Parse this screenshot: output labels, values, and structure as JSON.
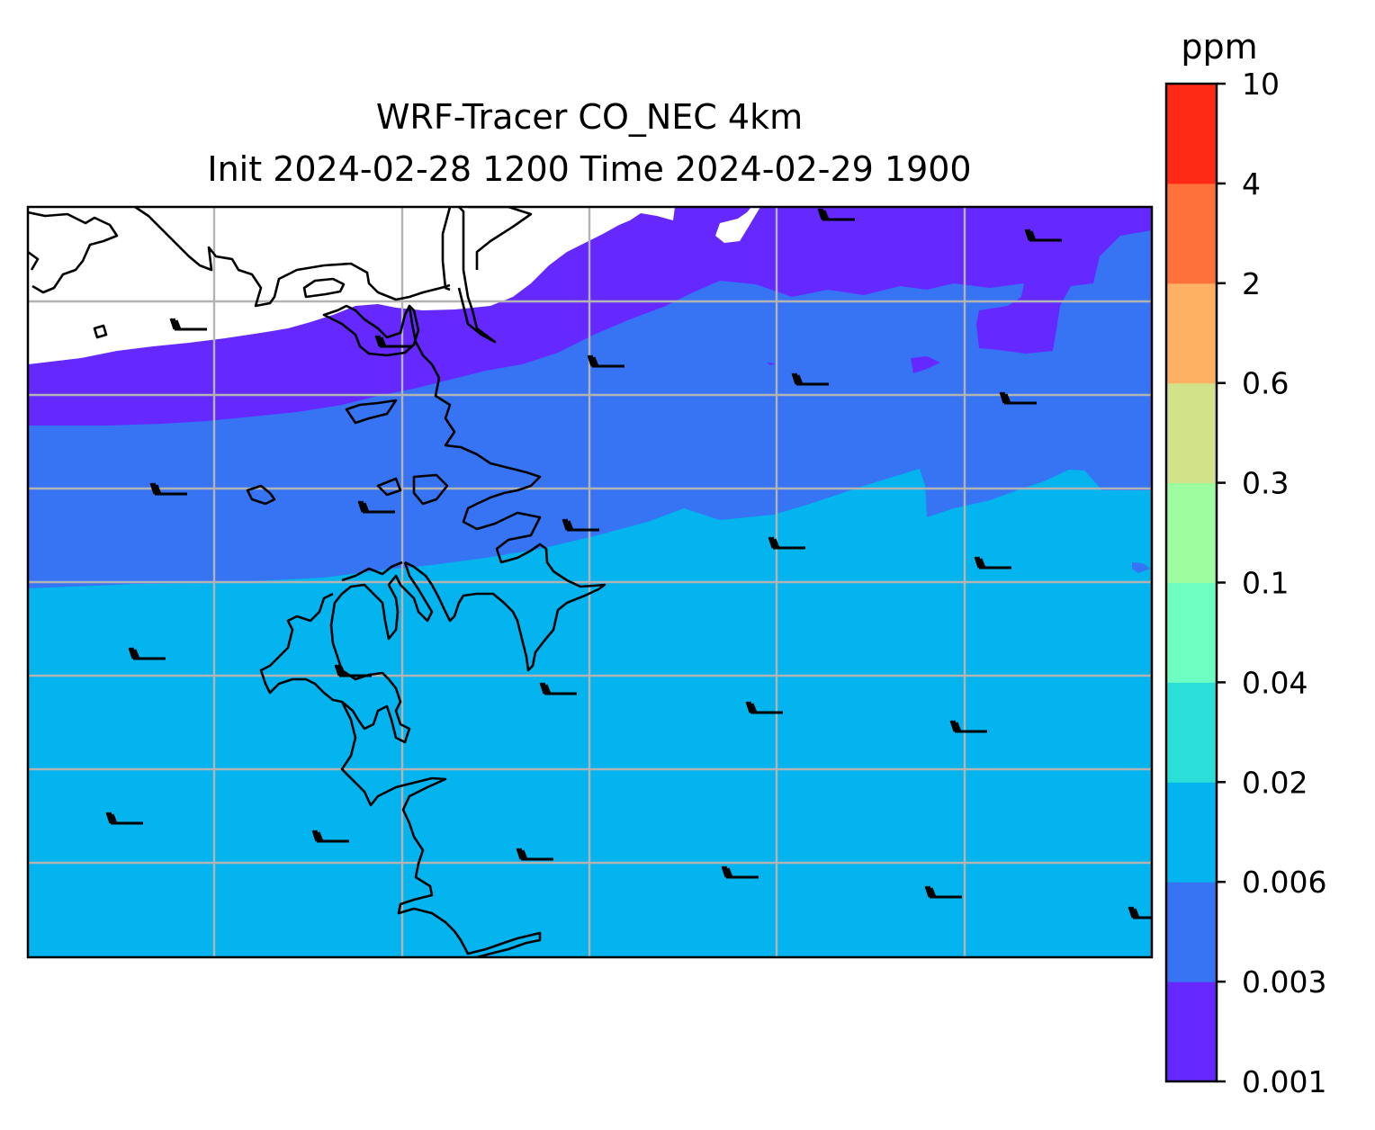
{
  "title": {
    "line1": "WRF-Tracer CO_NEC 4km",
    "line2": "Init 2024-02-28 1200 Time 2024-02-29 1900"
  },
  "colorbar": {
    "unit": "ppm",
    "levels": [
      "0.001",
      "0.003",
      "0.006",
      "0.02",
      "0.04",
      "0.1",
      "0.3",
      "0.6",
      "2",
      "4",
      "10"
    ],
    "colors": [
      "#6528ff",
      "#3674f4",
      "#03b4ee",
      "#2bdfd8",
      "#6dfec1",
      "#9dfd9f",
      "#d2e289",
      "#feb063",
      "#ff713b",
      "#ff2a16"
    ]
  },
  "map": {
    "background_fill": "#03b4ee",
    "band_colors": {
      "level_0_003": "#3674f4",
      "level_0_001": "#6528ff",
      "no_data": "#ffffff"
    },
    "gridlines": "on",
    "coastline_color": "#000000",
    "gridline_color": "#b3b3b3",
    "wind_barbs": "regular grid, westerly winds"
  }
}
